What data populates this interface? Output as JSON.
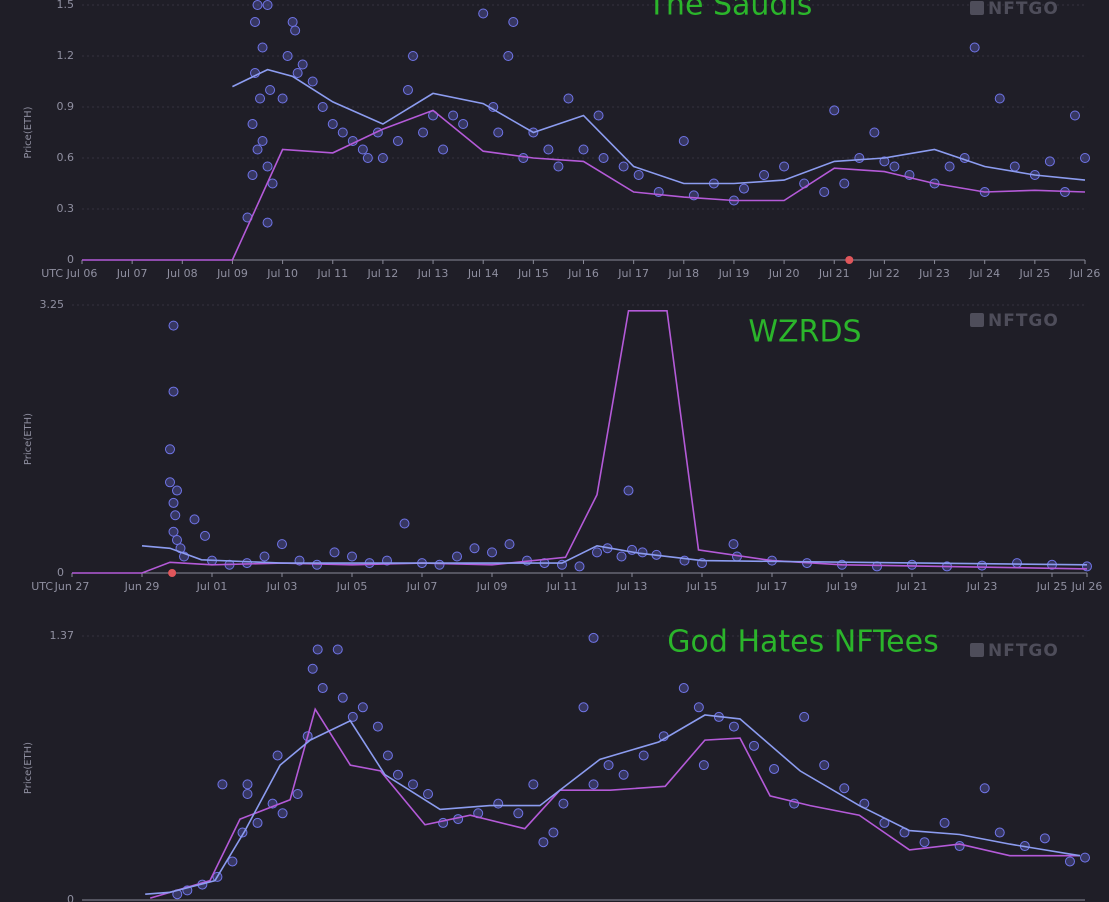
{
  "chart_data": [
    {
      "type": "scatter",
      "title": "The Saudis",
      "watermark": "NFTGO",
      "ylabel": "Price(ETH)",
      "timezone": "UTC",
      "xlim": [
        0,
        20
      ],
      "ylim": [
        0,
        1.5
      ],
      "yticks": [
        0,
        0.3,
        0.6,
        0.9,
        1.2,
        1.5
      ],
      "grid": true,
      "xticks": [
        {
          "value": 0,
          "label": "Jul 06"
        },
        {
          "value": 1,
          "label": "Jul 07"
        },
        {
          "value": 2,
          "label": "Jul 08"
        },
        {
          "value": 3,
          "label": "Jul 09"
        },
        {
          "value": 4,
          "label": "Jul 10"
        },
        {
          "value": 5,
          "label": "Jul 11"
        },
        {
          "value": 6,
          "label": "Jul 12"
        },
        {
          "value": 7,
          "label": "Jul 13"
        },
        {
          "value": 8,
          "label": "Jul 14"
        },
        {
          "value": 9,
          "label": "Jul 15"
        },
        {
          "value": 10,
          "label": "Jul 16"
        },
        {
          "value": 11,
          "label": "Jul 17"
        },
        {
          "value": 12,
          "label": "Jul 18"
        },
        {
          "value": 13,
          "label": "Jul 19"
        },
        {
          "value": 14,
          "label": "Jul 20"
        },
        {
          "value": 15,
          "label": "Jul 21"
        },
        {
          "value": 16,
          "label": "Jul 22"
        },
        {
          "value": 17,
          "label": "Jul 23"
        },
        {
          "value": 18,
          "label": "Jul 24"
        },
        {
          "value": 19,
          "label": "Jul 25"
        },
        {
          "value": 20,
          "label": "Jul 26"
        }
      ],
      "series": [
        {
          "type": "line",
          "color": "#b45ad8",
          "x": [
            0,
            3,
            4,
            5,
            6,
            7,
            8,
            9,
            10,
            11,
            12,
            13,
            14,
            15,
            16,
            17,
            18,
            19,
            20
          ],
          "values": [
            0,
            0,
            0.65,
            0.63,
            0.77,
            0.88,
            0.64,
            0.6,
            0.58,
            0.4,
            0.37,
            0.35,
            0.35,
            0.54,
            0.52,
            0.45,
            0.4,
            0.41,
            0.4
          ]
        },
        {
          "type": "line",
          "color": "#8c9cf0",
          "x": [
            3,
            3.7,
            4.2,
            5,
            6,
            7,
            8,
            9,
            10,
            11,
            12,
            13,
            14,
            15,
            16,
            17,
            18,
            19,
            20
          ],
          "values": [
            1.02,
            1.12,
            1.08,
            0.93,
            0.8,
            0.98,
            0.92,
            0.75,
            0.85,
            0.55,
            0.45,
            0.45,
            0.47,
            0.58,
            0.6,
            0.65,
            0.55,
            0.5,
            0.47
          ]
        },
        {
          "type": "scatter",
          "color": "#7075e8",
          "x": [
            3.4,
            3.4,
            3.45,
            3.45,
            3.5,
            3.5,
            3.55,
            3.6,
            3.6,
            3.7,
            3.7,
            3.75,
            3.8,
            3.3,
            3.7,
            4.0,
            4.1,
            4.2,
            4.25,
            4.3,
            4.4,
            4.6,
            4.8,
            5.0,
            5.2,
            5.4,
            5.6,
            5.7,
            5.9,
            6.0,
            6.3,
            6.5,
            6.6,
            6.8,
            7.0,
            7.2,
            7.4,
            7.6,
            8.0,
            8.2,
            8.3,
            8.5,
            8.6,
            8.8,
            9.0,
            9.3,
            9.5,
            9.7,
            10.0,
            10.3,
            10.4,
            10.8,
            11.1,
            11.5,
            12.0,
            12.2,
            12.6,
            13.0,
            13.2,
            13.6,
            14.0,
            14.4,
            14.8,
            15.0,
            15.2,
            15.5,
            15.8,
            16.0,
            16.2,
            16.5,
            17.0,
            17.3,
            17.8,
            17.6,
            18.0,
            18.3,
            18.6,
            19.0,
            19.3,
            19.6,
            19.8,
            20.0
          ],
          "values": [
            0.5,
            0.8,
            1.1,
            1.4,
            0.65,
            1.5,
            0.95,
            1.25,
            0.7,
            1.5,
            0.55,
            1.0,
            0.45,
            0.25,
            0.22,
            0.95,
            1.2,
            1.4,
            1.35,
            1.1,
            1.15,
            1.05,
            0.9,
            0.8,
            0.75,
            0.7,
            0.65,
            0.6,
            0.75,
            0.6,
            0.7,
            1.0,
            1.2,
            0.75,
            0.85,
            0.65,
            0.85,
            0.8,
            1.45,
            0.9,
            0.75,
            1.2,
            1.4,
            0.6,
            0.75,
            0.65,
            0.55,
            0.95,
            0.65,
            0.85,
            0.6,
            0.55,
            0.5,
            0.4,
            0.7,
            0.38,
            0.45,
            0.35,
            0.42,
            0.5,
            0.55,
            0.45,
            0.4,
            0.88,
            0.45,
            0.6,
            0.75,
            0.58,
            0.55,
            0.5,
            0.45,
            0.55,
            1.25,
            0.6,
            0.4,
            0.95,
            0.55,
            0.5,
            0.58,
            0.4,
            0.85,
            0.6
          ]
        },
        {
          "type": "dot",
          "color": "#e0565b",
          "x": [
            15.3
          ],
          "values": [
            0
          ]
        }
      ]
    },
    {
      "type": "scatter",
      "title": "WZRDS",
      "watermark": "NFTGO",
      "ylabel": "Price(ETH)",
      "timezone": "UTC",
      "xlim": [
        0,
        29
      ],
      "ylim": [
        0,
        3.25
      ],
      "yticks": [
        0,
        3.25
      ],
      "grid": true,
      "xticks": [
        {
          "value": 0,
          "label": "Jun 27"
        },
        {
          "value": 2,
          "label": "Jun 29"
        },
        {
          "value": 4,
          "label": "Jul 01"
        },
        {
          "value": 6,
          "label": "Jul 03"
        },
        {
          "value": 8,
          "label": "Jul 05"
        },
        {
          "value": 10,
          "label": "Jul 07"
        },
        {
          "value": 12,
          "label": "Jul 09"
        },
        {
          "value": 14,
          "label": "Jul 11"
        },
        {
          "value": 16,
          "label": "Jul 13"
        },
        {
          "value": 18,
          "label": "Jul 15"
        },
        {
          "value": 20,
          "label": "Jul 17"
        },
        {
          "value": 22,
          "label": "Jul 19"
        },
        {
          "value": 24,
          "label": "Jul 21"
        },
        {
          "value": 26,
          "label": "Jul 23"
        },
        {
          "value": 28,
          "label": "Jul 25"
        },
        {
          "value": 29,
          "label": "Jul 26"
        }
      ],
      "series": [
        {
          "type": "line",
          "color": "#b45ad8",
          "x": [
            0,
            2,
            2.8,
            4,
            6,
            8,
            10,
            12,
            14.1,
            15,
            15.9,
            17,
            17.9,
            20,
            22,
            29
          ],
          "values": [
            0,
            0,
            0.13,
            0.1,
            0.12,
            0.1,
            0.12,
            0.1,
            0.19,
            0.95,
            3.18,
            3.18,
            0.28,
            0.15,
            0.1,
            0.05
          ]
        },
        {
          "type": "line",
          "color": "#8c9cf0",
          "x": [
            2,
            2.8,
            3.7,
            6,
            10,
            14,
            15,
            16.2,
            18,
            29
          ],
          "values": [
            0.33,
            0.3,
            0.16,
            0.12,
            0.12,
            0.12,
            0.33,
            0.24,
            0.15,
            0.1
          ]
        },
        {
          "type": "scatter",
          "color": "#7075e8",
          "x": [
            2.9,
            2.9,
            2.8,
            2.8,
            2.9,
            3.0,
            2.95,
            2.9,
            3.0,
            3.1,
            3.2,
            3.5,
            3.8,
            4,
            4.5,
            5,
            5.5,
            6,
            6.5,
            7,
            7.5,
            8,
            8.5,
            9,
            9.5,
            10,
            10.5,
            11,
            11.5,
            12,
            12.5,
            13,
            13.5,
            14,
            14.5,
            15,
            15.3,
            15.7,
            16,
            16.3,
            15.9,
            16.7,
            17.5,
            18,
            18.9,
            19,
            20,
            21,
            22,
            23,
            24,
            25,
            26,
            27,
            28,
            29
          ],
          "values": [
            3.0,
            2.2,
            1.5,
            1.1,
            0.85,
            1.0,
            0.7,
            0.5,
            0.4,
            0.3,
            0.2,
            0.65,
            0.45,
            0.15,
            0.1,
            0.12,
            0.2,
            0.35,
            0.15,
            0.1,
            0.25,
            0.2,
            0.12,
            0.15,
            0.6,
            0.12,
            0.1,
            0.2,
            0.3,
            0.25,
            0.35,
            0.15,
            0.12,
            0.1,
            0.08,
            0.25,
            0.3,
            0.2,
            0.28,
            0.25,
            1.0,
            0.22,
            0.15,
            0.12,
            0.35,
            0.2,
            0.15,
            0.12,
            0.1,
            0.08,
            0.1,
            0.08,
            0.09,
            0.12,
            0.1,
            0.08
          ]
        },
        {
          "type": "dot",
          "color": "#e0565b",
          "x": [
            2.86
          ],
          "values": [
            0
          ]
        }
      ]
    },
    {
      "type": "scatter",
      "title": "God Hates NFTees",
      "watermark": "NFTGO",
      "ylabel": "Price(ETH)",
      "xlim": [
        0,
        20
      ],
      "ylim": [
        0,
        1.37
      ],
      "yticks": [
        0,
        1.37
      ],
      "grid": true,
      "series": [
        {
          "type": "line",
          "color": "#b45ad8",
          "x": [
            1.36,
            2.55,
            3.15,
            4.15,
            4.65,
            5.35,
            5.95,
            6.84,
            7.74,
            8.83,
            9.53,
            10.53,
            11.63,
            12.42,
            13.12,
            13.72,
            14.52,
            15.5,
            16.5,
            17.5,
            18.5,
            19.9
          ],
          "values": [
            0.01,
            0.1,
            0.42,
            0.52,
            0.99,
            0.7,
            0.67,
            0.39,
            0.44,
            0.37,
            0.57,
            0.57,
            0.59,
            0.83,
            0.84,
            0.54,
            0.49,
            0.44,
            0.26,
            0.29,
            0.23,
            0.23
          ]
        },
        {
          "type": "line",
          "color": "#8c9cf0",
          "x": [
            1.26,
            1.75,
            2.65,
            3.25,
            3.95,
            4.55,
            5.35,
            6.04,
            7.14,
            8.13,
            9.13,
            10.33,
            11.5,
            12.42,
            13.12,
            14.32,
            15.5,
            16.5,
            17.5,
            18.5,
            19.9
          ],
          "values": [
            0.03,
            0.04,
            0.1,
            0.36,
            0.7,
            0.83,
            0.93,
            0.65,
            0.47,
            0.49,
            0.49,
            0.73,
            0.82,
            0.96,
            0.94,
            0.67,
            0.49,
            0.36,
            0.34,
            0.29,
            0.23
          ]
        },
        {
          "type": "scatter",
          "color": "#7075e8",
          "x": [
            1.9,
            2.1,
            2.4,
            2.7,
            3.0,
            3.2,
            3.3,
            3.5,
            3.3,
            2.8,
            3.8,
            3.9,
            4.0,
            4.3,
            4.5,
            4.6,
            4.7,
            4.8,
            5.1,
            5.2,
            5.4,
            5.6,
            5.9,
            6.1,
            6.3,
            6.6,
            6.9,
            7.2,
            7.5,
            7.9,
            8.3,
            8.7,
            9.0,
            9.2,
            9.4,
            9.6,
            10.0,
            10.2,
            10.5,
            10.8,
            11.2,
            11.6,
            12.0,
            12.3,
            12.4,
            12.7,
            13.0,
            13.4,
            13.8,
            14.2,
            14.4,
            14.8,
            15.2,
            15.6,
            16.0,
            16.4,
            16.8,
            17.2,
            17.5,
            18.0,
            18.3,
            18.8,
            19.2,
            19.7,
            20.0,
            10.2
          ],
          "values": [
            0.03,
            0.05,
            0.08,
            0.12,
            0.2,
            0.35,
            0.55,
            0.4,
            0.6,
            0.6,
            0.5,
            0.75,
            0.45,
            0.55,
            0.85,
            1.2,
            1.3,
            1.1,
            1.3,
            1.05,
            0.95,
            1.0,
            0.9,
            0.75,
            0.65,
            0.6,
            0.55,
            0.4,
            0.42,
            0.45,
            0.5,
            0.45,
            0.6,
            0.3,
            0.35,
            0.5,
            1.0,
            0.6,
            0.7,
            0.65,
            0.75,
            0.85,
            1.1,
            1.0,
            0.7,
            0.95,
            0.9,
            0.8,
            0.68,
            0.5,
            0.95,
            0.7,
            0.58,
            0.5,
            0.4,
            0.35,
            0.3,
            0.4,
            0.28,
            0.58,
            0.35,
            0.28,
            0.32,
            0.2,
            0.22,
            1.36
          ]
        }
      ]
    }
  ]
}
